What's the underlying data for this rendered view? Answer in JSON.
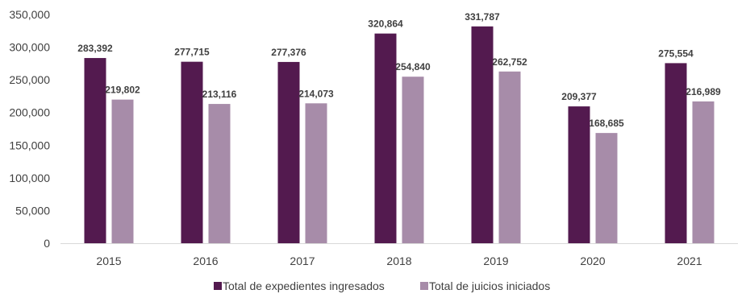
{
  "chart_data": {
    "type": "bar",
    "categories": [
      "2015",
      "2016",
      "2017",
      "2018",
      "2019",
      "2020",
      "2021"
    ],
    "series": [
      {
        "name": "Total de expedientes ingresados",
        "color": "#531A4F",
        "values": [
          283392,
          277715,
          277376,
          320864,
          331787,
          209377,
          275554
        ],
        "labels": [
          "283,392",
          "277,715",
          "277,376",
          "320,864",
          "331,787",
          "209,377",
          "275,554"
        ]
      },
      {
        "name": "Total de juicios iniciados",
        "color": "#A78CA9",
        "values": [
          219802,
          213116,
          214073,
          254840,
          262752,
          168685,
          216989
        ],
        "labels": [
          "219,802",
          "213,116",
          "214,073",
          "254,840",
          "262,752",
          "168,685",
          "216,989"
        ]
      }
    ],
    "ylim": [
      0,
      350000
    ],
    "yticks": [
      0,
      50000,
      100000,
      150000,
      200000,
      250000,
      300000,
      350000
    ],
    "ytick_labels": [
      "0",
      "50,000",
      "100,000",
      "150,000",
      "200,000",
      "250,000",
      "300,000",
      "350,000"
    ],
    "grid": false,
    "legend_position": "bottom-center"
  }
}
